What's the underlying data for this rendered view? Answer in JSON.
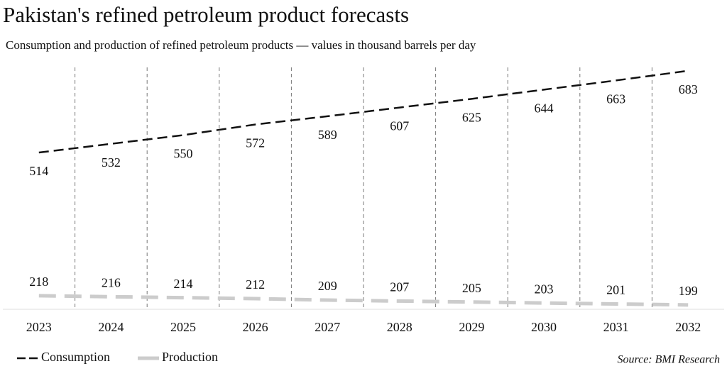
{
  "chart_data": {
    "type": "line",
    "title": "Pakistan's refined petroleum product forecasts",
    "subtitle": "Consumption and production of refined petroleum products — values in thousand barrels per day",
    "source": "Source: BMI Research",
    "categories": [
      "2023",
      "2024",
      "2025",
      "2026",
      "2027",
      "2028",
      "2029",
      "2030",
      "2031",
      "2032"
    ],
    "series": [
      {
        "name": "Consumption",
        "color": "#111111",
        "values": [
          514,
          532,
          550,
          572,
          589,
          607,
          625,
          644,
          663,
          683
        ]
      },
      {
        "name": "Production",
        "color": "#cccccc",
        "values": [
          218,
          216,
          214,
          212,
          209,
          207,
          205,
          203,
          201,
          199
        ]
      }
    ],
    "ylim": [
      190,
      690
    ],
    "grid": true
  }
}
